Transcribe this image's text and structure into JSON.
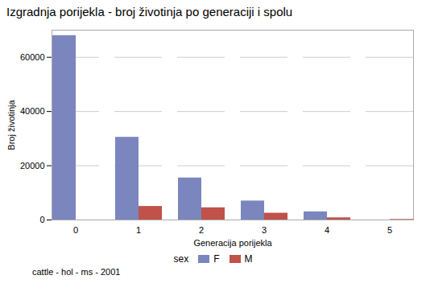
{
  "chart_data": {
    "type": "bar",
    "title": "Izgradnja porijekla - broj životinja po generaciji i spolu",
    "xlabel": "Generacija porijekla",
    "ylabel": "Broj životinja",
    "annotations": [
      "cattle - hol - ms - 2001"
    ],
    "categories": [
      0,
      1,
      2,
      3,
      4,
      5
    ],
    "series": [
      {
        "name": "F",
        "color": "#7b86be",
        "values": [
          68000,
          30500,
          15500,
          7000,
          3000,
          0
        ]
      },
      {
        "name": "M",
        "color": "#c0524a",
        "values": [
          0,
          5000,
          4500,
          2500,
          800,
          200
        ]
      }
    ],
    "legend_title": "sex",
    "legend": "bottom",
    "ylim": [
      0,
      70000
    ],
    "yticks": [
      0,
      20000,
      40000,
      60000
    ],
    "grid": true
  }
}
